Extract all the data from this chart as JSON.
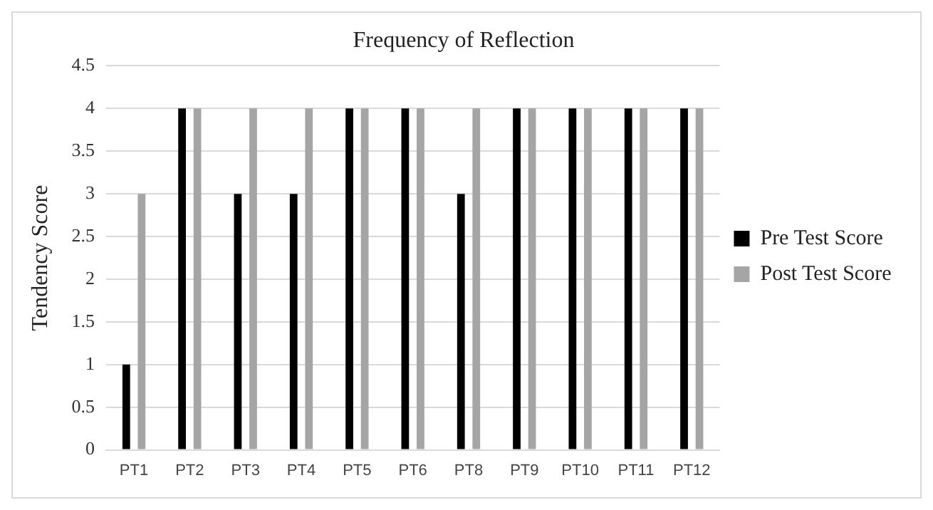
{
  "chart_data": {
    "type": "bar",
    "title": "Frequency of Reflection",
    "ylabel": "Tendency Score",
    "categories": [
      "PT1",
      "PT2",
      "PT3",
      "PT4",
      "PT5",
      "PT6",
      "PT8",
      "PT9",
      "PT10",
      "PT11",
      "PT12"
    ],
    "series": [
      {
        "name": "Pre Test Score",
        "color": "#000000",
        "values": [
          1,
          4,
          3,
          3,
          4,
          4,
          3,
          4,
          4,
          4,
          4
        ]
      },
      {
        "name": "Post Test Score",
        "color": "#a5a5a5",
        "values": [
          3,
          4,
          4,
          4,
          4,
          4,
          4,
          4,
          4,
          4,
          4
        ]
      }
    ],
    "ylim": [
      0,
      4.5
    ],
    "yticks": [
      0,
      0.5,
      1,
      1.5,
      2,
      2.5,
      3,
      3.5,
      4,
      4.5
    ],
    "grid": "y",
    "legend": "right"
  }
}
